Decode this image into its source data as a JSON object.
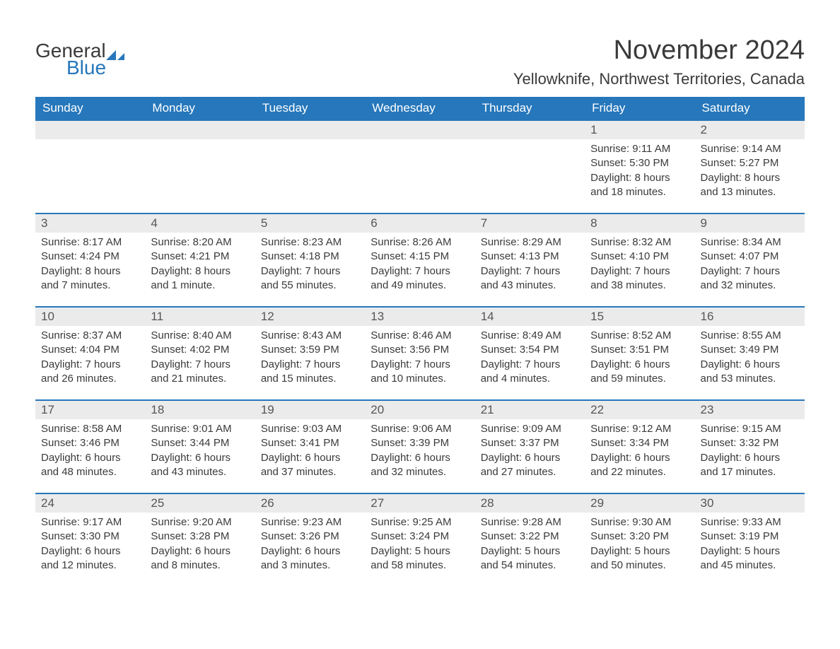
{
  "logo": {
    "text_general": "General",
    "text_blue": "Blue",
    "shape_color": "#2677bb"
  },
  "header": {
    "title": "November 2024",
    "subtitle": "Yellowknife, Northwest Territories, Canada"
  },
  "styling": {
    "header_bg": "#2677bb",
    "header_fg": "#ffffff",
    "row_border": "#2677bb",
    "daynum_bg": "#ebebeb",
    "body_bg": "#ffffff",
    "text_color": "#3a3a3a",
    "font_family": "Arial",
    "title_fontsize": 38,
    "subtitle_fontsize": 22,
    "header_fontsize": 17,
    "body_fontsize": 15
  },
  "day_headers": [
    "Sunday",
    "Monday",
    "Tuesday",
    "Wednesday",
    "Thursday",
    "Friday",
    "Saturday"
  ],
  "weeks": [
    [
      {
        "blank": true
      },
      {
        "blank": true
      },
      {
        "blank": true
      },
      {
        "blank": true
      },
      {
        "blank": true
      },
      {
        "date": "1",
        "sunrise": "Sunrise: 9:11 AM",
        "sunset": "Sunset: 5:30 PM",
        "daylight1": "Daylight: 8 hours",
        "daylight2": "and 18 minutes."
      },
      {
        "date": "2",
        "sunrise": "Sunrise: 9:14 AM",
        "sunset": "Sunset: 5:27 PM",
        "daylight1": "Daylight: 8 hours",
        "daylight2": "and 13 minutes."
      }
    ],
    [
      {
        "date": "3",
        "sunrise": "Sunrise: 8:17 AM",
        "sunset": "Sunset: 4:24 PM",
        "daylight1": "Daylight: 8 hours",
        "daylight2": "and 7 minutes."
      },
      {
        "date": "4",
        "sunrise": "Sunrise: 8:20 AM",
        "sunset": "Sunset: 4:21 PM",
        "daylight1": "Daylight: 8 hours",
        "daylight2": "and 1 minute."
      },
      {
        "date": "5",
        "sunrise": "Sunrise: 8:23 AM",
        "sunset": "Sunset: 4:18 PM",
        "daylight1": "Daylight: 7 hours",
        "daylight2": "and 55 minutes."
      },
      {
        "date": "6",
        "sunrise": "Sunrise: 8:26 AM",
        "sunset": "Sunset: 4:15 PM",
        "daylight1": "Daylight: 7 hours",
        "daylight2": "and 49 minutes."
      },
      {
        "date": "7",
        "sunrise": "Sunrise: 8:29 AM",
        "sunset": "Sunset: 4:13 PM",
        "daylight1": "Daylight: 7 hours",
        "daylight2": "and 43 minutes."
      },
      {
        "date": "8",
        "sunrise": "Sunrise: 8:32 AM",
        "sunset": "Sunset: 4:10 PM",
        "daylight1": "Daylight: 7 hours",
        "daylight2": "and 38 minutes."
      },
      {
        "date": "9",
        "sunrise": "Sunrise: 8:34 AM",
        "sunset": "Sunset: 4:07 PM",
        "daylight1": "Daylight: 7 hours",
        "daylight2": "and 32 minutes."
      }
    ],
    [
      {
        "date": "10",
        "sunrise": "Sunrise: 8:37 AM",
        "sunset": "Sunset: 4:04 PM",
        "daylight1": "Daylight: 7 hours",
        "daylight2": "and 26 minutes."
      },
      {
        "date": "11",
        "sunrise": "Sunrise: 8:40 AM",
        "sunset": "Sunset: 4:02 PM",
        "daylight1": "Daylight: 7 hours",
        "daylight2": "and 21 minutes."
      },
      {
        "date": "12",
        "sunrise": "Sunrise: 8:43 AM",
        "sunset": "Sunset: 3:59 PM",
        "daylight1": "Daylight: 7 hours",
        "daylight2": "and 15 minutes."
      },
      {
        "date": "13",
        "sunrise": "Sunrise: 8:46 AM",
        "sunset": "Sunset: 3:56 PM",
        "daylight1": "Daylight: 7 hours",
        "daylight2": "and 10 minutes."
      },
      {
        "date": "14",
        "sunrise": "Sunrise: 8:49 AM",
        "sunset": "Sunset: 3:54 PM",
        "daylight1": "Daylight: 7 hours",
        "daylight2": "and 4 minutes."
      },
      {
        "date": "15",
        "sunrise": "Sunrise: 8:52 AM",
        "sunset": "Sunset: 3:51 PM",
        "daylight1": "Daylight: 6 hours",
        "daylight2": "and 59 minutes."
      },
      {
        "date": "16",
        "sunrise": "Sunrise: 8:55 AM",
        "sunset": "Sunset: 3:49 PM",
        "daylight1": "Daylight: 6 hours",
        "daylight2": "and 53 minutes."
      }
    ],
    [
      {
        "date": "17",
        "sunrise": "Sunrise: 8:58 AM",
        "sunset": "Sunset: 3:46 PM",
        "daylight1": "Daylight: 6 hours",
        "daylight2": "and 48 minutes."
      },
      {
        "date": "18",
        "sunrise": "Sunrise: 9:01 AM",
        "sunset": "Sunset: 3:44 PM",
        "daylight1": "Daylight: 6 hours",
        "daylight2": "and 43 minutes."
      },
      {
        "date": "19",
        "sunrise": "Sunrise: 9:03 AM",
        "sunset": "Sunset: 3:41 PM",
        "daylight1": "Daylight: 6 hours",
        "daylight2": "and 37 minutes."
      },
      {
        "date": "20",
        "sunrise": "Sunrise: 9:06 AM",
        "sunset": "Sunset: 3:39 PM",
        "daylight1": "Daylight: 6 hours",
        "daylight2": "and 32 minutes."
      },
      {
        "date": "21",
        "sunrise": "Sunrise: 9:09 AM",
        "sunset": "Sunset: 3:37 PM",
        "daylight1": "Daylight: 6 hours",
        "daylight2": "and 27 minutes."
      },
      {
        "date": "22",
        "sunrise": "Sunrise: 9:12 AM",
        "sunset": "Sunset: 3:34 PM",
        "daylight1": "Daylight: 6 hours",
        "daylight2": "and 22 minutes."
      },
      {
        "date": "23",
        "sunrise": "Sunrise: 9:15 AM",
        "sunset": "Sunset: 3:32 PM",
        "daylight1": "Daylight: 6 hours",
        "daylight2": "and 17 minutes."
      }
    ],
    [
      {
        "date": "24",
        "sunrise": "Sunrise: 9:17 AM",
        "sunset": "Sunset: 3:30 PM",
        "daylight1": "Daylight: 6 hours",
        "daylight2": "and 12 minutes."
      },
      {
        "date": "25",
        "sunrise": "Sunrise: 9:20 AM",
        "sunset": "Sunset: 3:28 PM",
        "daylight1": "Daylight: 6 hours",
        "daylight2": "and 8 minutes."
      },
      {
        "date": "26",
        "sunrise": "Sunrise: 9:23 AM",
        "sunset": "Sunset: 3:26 PM",
        "daylight1": "Daylight: 6 hours",
        "daylight2": "and 3 minutes."
      },
      {
        "date": "27",
        "sunrise": "Sunrise: 9:25 AM",
        "sunset": "Sunset: 3:24 PM",
        "daylight1": "Daylight: 5 hours",
        "daylight2": "and 58 minutes."
      },
      {
        "date": "28",
        "sunrise": "Sunrise: 9:28 AM",
        "sunset": "Sunset: 3:22 PM",
        "daylight1": "Daylight: 5 hours",
        "daylight2": "and 54 minutes."
      },
      {
        "date": "29",
        "sunrise": "Sunrise: 9:30 AM",
        "sunset": "Sunset: 3:20 PM",
        "daylight1": "Daylight: 5 hours",
        "daylight2": "and 50 minutes."
      },
      {
        "date": "30",
        "sunrise": "Sunrise: 9:33 AM",
        "sunset": "Sunset: 3:19 PM",
        "daylight1": "Daylight: 5 hours",
        "daylight2": "and 45 minutes."
      }
    ]
  ]
}
